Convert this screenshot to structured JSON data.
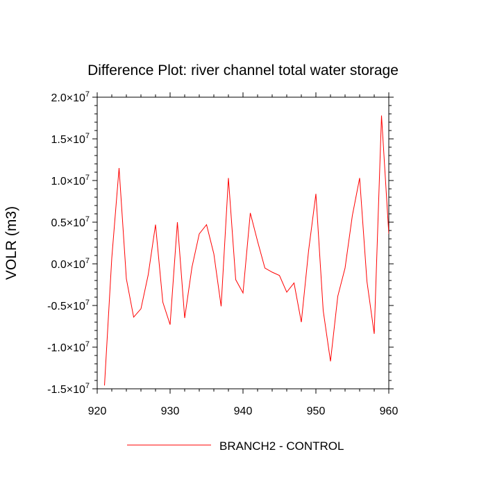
{
  "chart_data": {
    "type": "line",
    "title": "Difference Plot: river channel total water storage",
    "ylabel": "VOLR  (m3)",
    "xlabel": "",
    "xlim": [
      920,
      960
    ],
    "ylim": [
      -15000000,
      20000000
    ],
    "x_ticks": [
      920,
      930,
      940,
      950,
      960
    ],
    "y_ticks": [
      -15000000,
      -10000000,
      -5000000,
      0,
      5000000,
      10000000,
      15000000,
      20000000
    ],
    "y_tick_labels": [
      {
        "mantissa": "-1.5",
        "exp": "7"
      },
      {
        "mantissa": "-1.0",
        "exp": "7"
      },
      {
        "mantissa": "-0.5",
        "exp": "7"
      },
      {
        "mantissa": "0.0",
        "exp": "7"
      },
      {
        "mantissa": "0.5",
        "exp": "7"
      },
      {
        "mantissa": "1.0",
        "exp": "7"
      },
      {
        "mantissa": "1.5",
        "exp": "7"
      },
      {
        "mantissa": "2.0",
        "exp": "7"
      }
    ],
    "y_tick_sep": "×10",
    "grid": false,
    "legend_placement": "bottom-center",
    "series": [
      {
        "name": "BRANCH2 - CONTROL",
        "color": "#ff0000",
        "x": [
          921,
          922,
          923,
          924,
          925,
          926,
          927,
          928,
          929,
          930,
          931,
          932,
          933,
          934,
          935,
          936,
          937,
          938,
          939,
          940,
          941,
          942,
          943,
          944,
          945,
          946,
          947,
          948,
          949,
          950,
          951,
          952,
          953,
          954,
          955,
          956,
          957,
          958,
          959,
          960
        ],
        "values": [
          -14600000,
          700000,
          11500000,
          -1800000,
          -6400000,
          -5400000,
          -1300000,
          4700000,
          -4600000,
          -7300000,
          5000000,
          -6500000,
          -400000,
          3600000,
          4700000,
          1200000,
          -5100000,
          10300000,
          -1900000,
          -3500000,
          6100000,
          2700000,
          -500000,
          -1000000,
          -1400000,
          -3400000,
          -2300000,
          -7000000,
          1600000,
          8400000,
          -5600000,
          -11700000,
          -3900000,
          -500000,
          5800000,
          10300000,
          -2100000,
          -8400000,
          17800000,
          3600000
        ]
      }
    ]
  }
}
